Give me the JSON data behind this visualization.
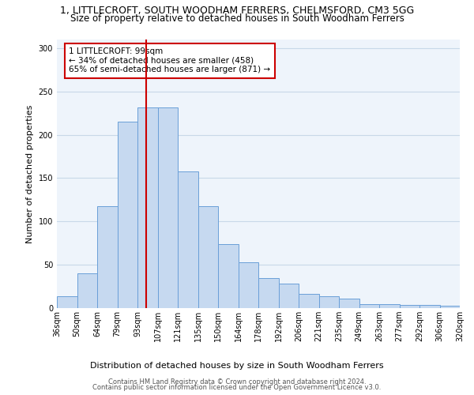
{
  "title": "1, LITTLECROFT, SOUTH WOODHAM FERRERS, CHELMSFORD, CM3 5GG",
  "subtitle": "Size of property relative to detached houses in South Woodham Ferrers",
  "xlabel": "Distribution of detached houses by size in South Woodham Ferrers",
  "ylabel": "Number of detached properties",
  "categories": [
    "36sqm",
    "50sqm",
    "64sqm",
    "79sqm",
    "93sqm",
    "107sqm",
    "121sqm",
    "135sqm",
    "150sqm",
    "164sqm",
    "178sqm",
    "192sqm",
    "206sqm",
    "221sqm",
    "235sqm",
    "249sqm",
    "263sqm",
    "277sqm",
    "292sqm",
    "306sqm",
    "320sqm"
  ],
  "values": [
    14,
    40,
    118,
    215,
    232,
    232,
    158,
    118,
    74,
    53,
    35,
    28,
    16,
    14,
    11,
    5,
    5,
    4,
    4,
    3
  ],
  "bar_color": "#c6d9f0",
  "bar_edge_color": "#6a9fd8",
  "annotation_text_line1": "1 LITTLECROFT: 99sqm",
  "annotation_text_line2": "← 34% of detached houses are smaller (458)",
  "annotation_text_line3": "65% of semi-detached houses are larger (871) →",
  "vline_color": "#cc0000",
  "annotation_box_color": "#ffffff",
  "annotation_box_edge": "#cc0000",
  "grid_color": "#c8d8e8",
  "background_color": "#eef4fb",
  "footer_line1": "Contains HM Land Registry data © Crown copyright and database right 2024.",
  "footer_line2": "Contains public sector information licensed under the Open Government Licence v3.0.",
  "ylim": [
    0,
    310
  ],
  "title_fontsize": 9,
  "subtitle_fontsize": 8.5,
  "xlabel_fontsize": 8,
  "ylabel_fontsize": 8,
  "annotation_fontsize": 7.5,
  "tick_fontsize": 7
}
